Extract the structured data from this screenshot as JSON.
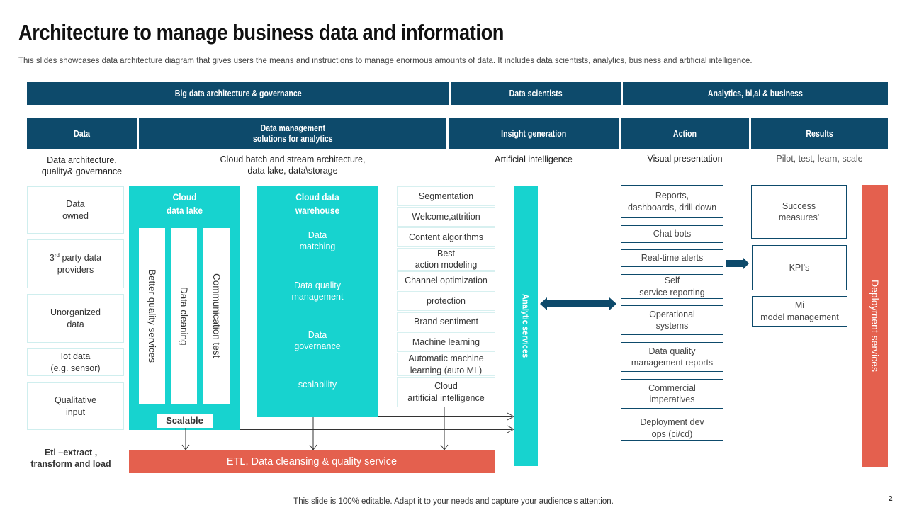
{
  "title": "Architecture to manage business data and information",
  "subtitle": "This slides showcases data architecture diagram that gives users the means and instructions to manage enormous amounts of data. It includes data scientists, analytics, business and artificial intelligence.",
  "top_headers": [
    "Big data architecture & governance",
    "Data scientists",
    "Analytics, bi,ai & business"
  ],
  "columns": [
    {
      "header": "Data",
      "desc": "Data architecture,\nquality& governance"
    },
    {
      "header": "Data management\nsolutions for analytics",
      "desc": "Cloud batch and stream architecture,\ndata lake, data\\storage"
    },
    {
      "header": "Insight generation",
      "desc": "Artificial intelligence"
    },
    {
      "header": "Action",
      "desc": "Visual presentation"
    },
    {
      "header": "Results",
      "desc": "Pilot, test, learn, scale"
    }
  ],
  "data_sources": [
    "Data\nowned",
    "3rd party data\nproviders",
    "Unorganized\ndata",
    "Iot data\n(e.g. sensor)",
    "Qualitative\ninput"
  ],
  "data_sources_sup": {
    "prefix": "3",
    "sup": "rd",
    "rest": " party data\nproviders"
  },
  "etl_label": "Etl –extract ,\ntransform and load",
  "data_lake": {
    "title": "Cloud\ndata lake",
    "bars": [
      "Better quality services",
      "Data cleaning",
      "Communication test"
    ],
    "scalable": "Scalable"
  },
  "warehouse": {
    "title": "Cloud data\nwarehouse",
    "items": [
      "Data\nmatching",
      "Data quality\nmanagement",
      "Data\ngovernance",
      "scalability"
    ]
  },
  "insights": [
    "Segmentation",
    "Welcome,attrition",
    "Content algorithms",
    "Best\naction modeling",
    "Channel optimization",
    "protection",
    "Brand sentiment",
    "Machine learning",
    "Automatic machine\nlearning (auto ML)",
    "Cloud\nartificial intelligence"
  ],
  "analytic_services": "Analytic services",
  "etl_bar": "ETL, Data cleansing & quality service",
  "actions": [
    "Reports,\ndashboards, drill down",
    "Chat bots",
    "Real-time alerts",
    "Self\nservice reporting",
    "Operational\nsystems",
    "Data quality\nmanagement reports",
    "Commercial\nimperatives",
    "Deployment dev\nops (ci/cd)"
  ],
  "results": [
    "Success\nmeasures'",
    "KPI's",
    "Mi\nmodel management"
  ],
  "deployment_services": "Deployment services",
  "footer": "This slide is 100% editable. Adapt it to your needs and capture your audience's attention.",
  "page_number": "2",
  "colors": {
    "navy": "#0d4a6b",
    "teal": "#17d3cf",
    "red": "#e4604e"
  }
}
